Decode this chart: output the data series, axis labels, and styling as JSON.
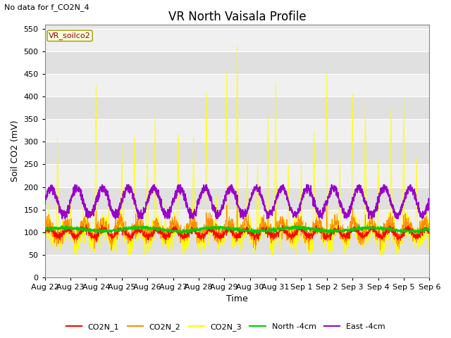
{
  "title": "VR North Vaisala Profile",
  "subtitle": "No data for f_CO2N_4",
  "ylabel": "Soil CO2 (mV)",
  "xlabel": "Time",
  "ylim": [
    0,
    560
  ],
  "yticks": [
    0,
    50,
    100,
    150,
    200,
    250,
    300,
    350,
    400,
    450,
    500,
    550
  ],
  "legend_label": "VR_soilco2",
  "series_colors": {
    "CO2N_1": "#ff0000",
    "CO2N_2": "#ff8c00",
    "CO2N_3": "#ffff00",
    "North -4cm": "#00cc00",
    "East -4cm": "#9900cc"
  },
  "fig_bg_color": "#ffffff",
  "plot_bg_color": "#e8e8e8",
  "band_light": "#f0f0f0",
  "band_dark": "#e0e0e0",
  "grid_color": "#ffffff",
  "title_fontsize": 12,
  "axis_fontsize": 9,
  "tick_fontsize": 8,
  "spike_days": [
    0.5,
    1.0,
    1.5,
    2.0,
    2.5,
    3.0,
    3.5,
    4.0,
    4.3,
    4.7,
    5.2,
    5.8,
    6.3,
    6.7,
    7.1,
    7.5,
    7.9,
    8.3,
    8.7,
    9.0,
    9.5,
    10.0,
    10.5,
    11.0,
    11.5,
    12.0,
    12.5,
    13.0,
    13.5,
    14.0,
    14.5
  ],
  "spike_heights": [
    310,
    180,
    165,
    425,
    165,
    295,
    311,
    295,
    356,
    175,
    315,
    315,
    409,
    180,
    456,
    512,
    260,
    265,
    355,
    430,
    250,
    260,
    325,
    450,
    265,
    405,
    395,
    260,
    375,
    395,
    265
  ]
}
